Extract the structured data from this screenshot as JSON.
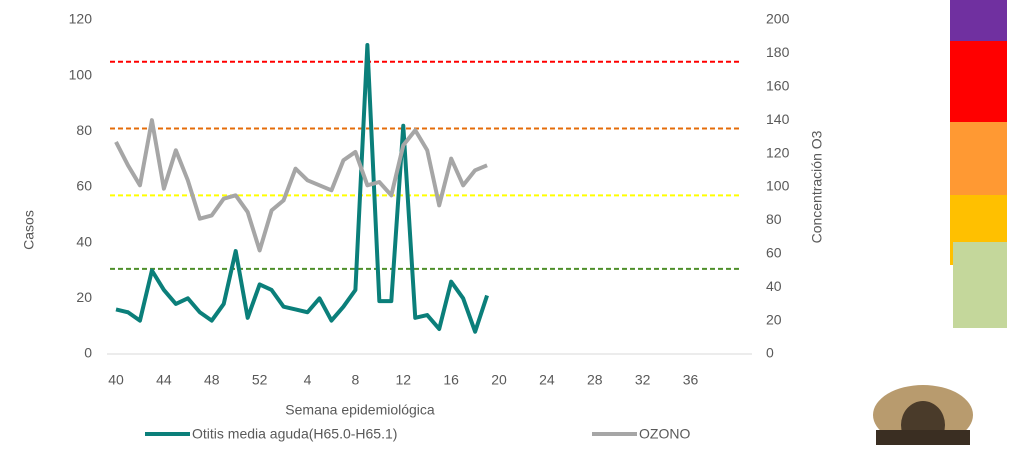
{
  "chart_data": {
    "type": "line",
    "x_label": "Semana epidemiológica",
    "y_label": "Casos",
    "y2_label": "Concentración O3",
    "categories": [
      "40",
      null,
      null,
      null,
      "44",
      null,
      null,
      null,
      "48",
      null,
      null,
      null,
      "52",
      null,
      null,
      null,
      "4",
      null,
      null,
      null,
      "8",
      null,
      null,
      null,
      "12",
      null,
      null,
      null,
      "16",
      null,
      null,
      null,
      "20",
      null,
      null,
      null,
      "24",
      null,
      null,
      null,
      "28",
      null,
      null,
      null,
      "32",
      null,
      null,
      null,
      "36",
      null,
      null,
      null,
      null,
      null
    ],
    "ylim": [
      0,
      120
    ],
    "yticks": [
      0,
      20,
      40,
      60,
      80,
      100,
      120
    ],
    "y2lim": [
      0,
      200
    ],
    "y2ticks": [
      0,
      20,
      40,
      60,
      80,
      100,
      120,
      140,
      160,
      180,
      200
    ],
    "series": [
      {
        "name": "Otitis media aguda(H65.0-H65.1)",
        "color": "#0b7f7a",
        "values": [
          16,
          15,
          12,
          30,
          23,
          18,
          20,
          15,
          12,
          18,
          37,
          13,
          25,
          23,
          17,
          16,
          15,
          20,
          12,
          17,
          23,
          111,
          19,
          19,
          82,
          13,
          14,
          9,
          26,
          20,
          8,
          21,
          null,
          null,
          null,
          null,
          null,
          null,
          null,
          null,
          null,
          null,
          null,
          null,
          null,
          null,
          null,
          null,
          null,
          null,
          null,
          null,
          null,
          null
        ]
      },
      {
        "name": "OZONO",
        "color": "#a6a6a6",
        "axis": "y2",
        "values": [
          127,
          113,
          101,
          140,
          99,
          122,
          104,
          81,
          83,
          93,
          95,
          85,
          62,
          86,
          92,
          111,
          104,
          101,
          98,
          116,
          121,
          101,
          103,
          95,
          125,
          134,
          122,
          89,
          117,
          101,
          110,
          113,
          null,
          null,
          null,
          null,
          null,
          null,
          null,
          null,
          null,
          null,
          null,
          null,
          null,
          null,
          null,
          null,
          null,
          null,
          null,
          null,
          null,
          null
        ]
      }
    ],
    "reference_lines": [
      {
        "value": 175,
        "color": "#ff0000",
        "axis": "y2"
      },
      {
        "value": 135,
        "color": "#e46c0a",
        "axis": "y2"
      },
      {
        "value": 95,
        "color": "#ffff00",
        "axis": "y2"
      },
      {
        "value": 51,
        "color": "#4e8f2a",
        "axis": "y2"
      }
    ],
    "legend": "bottom"
  }
}
